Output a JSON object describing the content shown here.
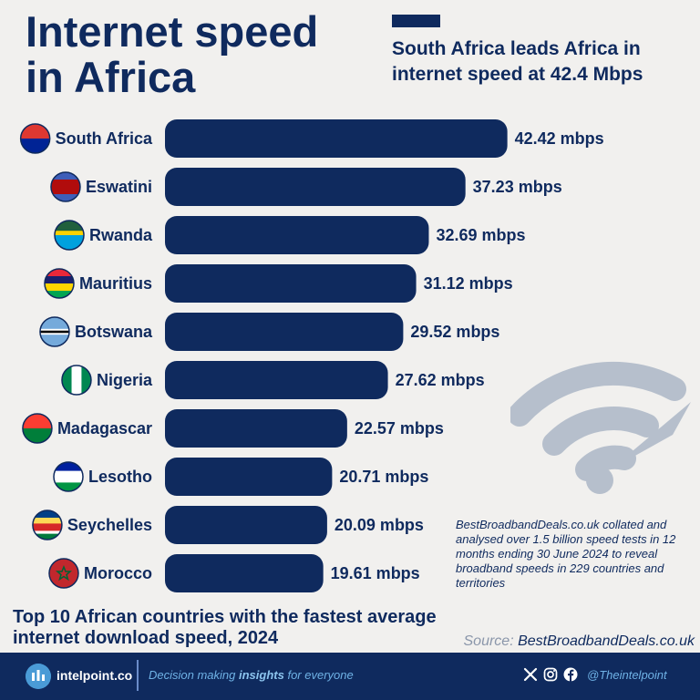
{
  "header": {
    "title_line1": "Internet speed",
    "title_line2": "in Africa",
    "subtitle_line1": "South Africa leads Africa in",
    "subtitle_line2": "internet speed at 42.4 Mbps"
  },
  "chart_data": {
    "type": "bar",
    "orientation": "horizontal",
    "categories": [
      "South Africa",
      "Eswatini",
      "Rwanda",
      "Mauritius",
      "Botswana",
      "Nigeria",
      "Madagascar",
      "Lesotho",
      "Seychelles",
      "Morocco"
    ],
    "values": [
      42.42,
      37.23,
      32.69,
      31.12,
      29.52,
      27.62,
      22.57,
      20.71,
      20.09,
      19.61
    ],
    "value_labels": [
      "42.42 mbps",
      "37.23 mbps",
      "32.69 mbps",
      "31.12 mbps",
      "29.52 mbps",
      "27.62 mbps",
      "22.57 mbps",
      "20.71 mbps",
      "20.09 mbps",
      "19.61 mbps"
    ],
    "bar_color": "#0f2a5e",
    "grid": false,
    "legend": "none"
  },
  "note": "BestBroadbandDeals.co.uk collated and analysed over 1.5 billion speed tests in 12 months ending 30 June 2024 to reveal broadband speeds in 229 countries and territories",
  "caption": {
    "line1": "Top 10 African countries with the fastest average",
    "line2": "internet download speed, 2024"
  },
  "source": {
    "label": "Source:",
    "value": "BestBroadbandDeals.co.uk"
  },
  "footer": {
    "brand": "intelpoint.co",
    "tagline_pre": "Decision making ",
    "tagline_bold": "insights",
    "tagline_post": " for everyone",
    "handle": "@Theintelpoint",
    "icons": [
      "x-icon",
      "instagram-icon",
      "facebook-icon"
    ]
  },
  "colors": {
    "navy": "#0f2a5e",
    "background": "#f1f0ee",
    "wifi_grey": "#b6bfcc",
    "footer_accent": "#6fb2e6"
  }
}
